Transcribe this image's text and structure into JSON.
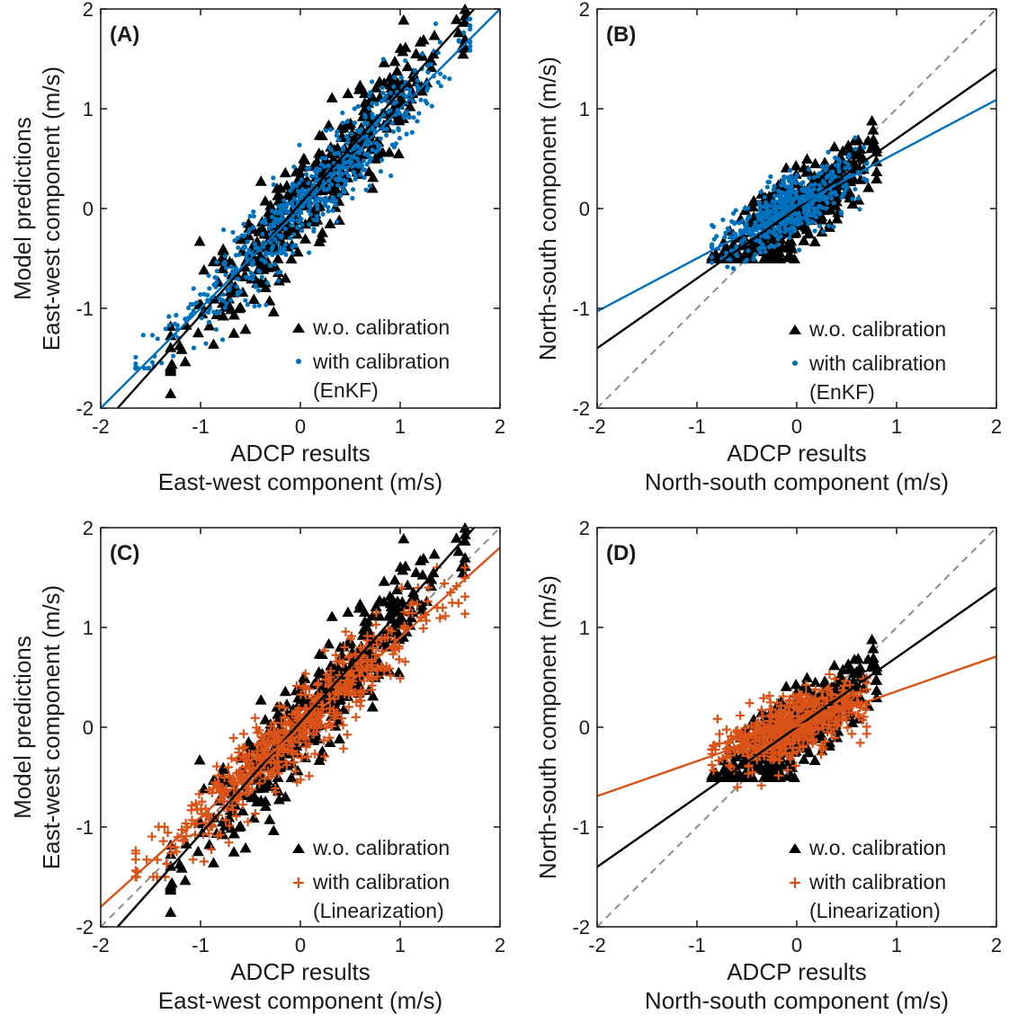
{
  "figure": {
    "y_axis_common_label": "Model predictions",
    "x_axis_common_label": "ADCP results"
  },
  "chart_data": [
    {
      "type": "scatter",
      "panel_label": "(A)",
      "xlabel": "East-west component (m/s)",
      "ylabel": "East-west component (m/s)",
      "xlim": [
        -2,
        2
      ],
      "ylim": [
        -2,
        2
      ],
      "xticks": [
        "-2",
        "-1",
        "0",
        "1",
        "2"
      ],
      "yticks": [
        "-2",
        "-1",
        "0",
        "1",
        "2"
      ],
      "identity_line": true,
      "legend_location": "bottom-right",
      "series": [
        {
          "name": "w.o. calibration",
          "marker": "triangle",
          "color": "#000000",
          "fit": {
            "slope": 1.12,
            "intercept": 0.05
          },
          "spread": 0.26,
          "cluster": {
            "x_range": [
              -1.3,
              1.65
            ],
            "y_clip": [
              -1.85,
              2.0
            ]
          },
          "n": 420,
          "seed": 11
        },
        {
          "name": "with calibration",
          "marker": "dot",
          "color": "#0072BD",
          "fit": {
            "slope": 1.0,
            "intercept": 0.0
          },
          "spread": 0.21,
          "cluster": {
            "x_range": [
              -1.65,
              1.7
            ],
            "y_clip": [
              -1.6,
              1.9
            ]
          },
          "n": 620,
          "seed": 23
        }
      ],
      "legend_note": "(EnKF)"
    },
    {
      "type": "scatter",
      "panel_label": "(B)",
      "xlabel": "North-south component (m/s)",
      "ylabel": "North-south component (m/s)",
      "xlim": [
        -2,
        2
      ],
      "ylim": [
        -2,
        2
      ],
      "xticks": [
        "-2",
        "-1",
        "0",
        "1",
        "2"
      ],
      "yticks": [
        "-2",
        "-1",
        "0",
        "1",
        "2"
      ],
      "identity_line": true,
      "legend_location": "bottom-right",
      "series": [
        {
          "name": "w.o. calibration",
          "marker": "triangle",
          "color": "#000000",
          "fit": {
            "slope": 0.7,
            "intercept": 0.0
          },
          "spread": 0.2,
          "cluster": {
            "x_range": [
              -0.85,
              0.8
            ],
            "y_clip": [
              -0.5,
              0.95
            ]
          },
          "n": 360,
          "seed": 37
        },
        {
          "name": "with calibration",
          "marker": "dot",
          "color": "#0072BD",
          "fit": {
            "slope": 0.53,
            "intercept": 0.03
          },
          "spread": 0.16,
          "cluster": {
            "x_range": [
              -0.85,
              0.7
            ],
            "y_clip": [
              -0.6,
              0.85
            ]
          },
          "n": 520,
          "seed": 41
        }
      ],
      "legend_note": "(EnKF)"
    },
    {
      "type": "scatter",
      "panel_label": "(C)",
      "xlabel": "East-west component (m/s)",
      "ylabel": "East-west component (m/s)",
      "xlim": [
        -2,
        2
      ],
      "ylim": [
        -2,
        2
      ],
      "xticks": [
        "-2",
        "-1",
        "0",
        "1",
        "2"
      ],
      "yticks": [
        "-2",
        "-1",
        "0",
        "1",
        "2"
      ],
      "identity_line": true,
      "legend_location": "bottom-right",
      "series": [
        {
          "name": "w.o. calibration",
          "marker": "triangle",
          "color": "#000000",
          "fit": {
            "slope": 1.12,
            "intercept": 0.05
          },
          "spread": 0.26,
          "cluster": {
            "x_range": [
              -1.3,
              1.65
            ],
            "y_clip": [
              -1.85,
              2.0
            ]
          },
          "n": 420,
          "seed": 11
        },
        {
          "name": "with calibration",
          "marker": "plus",
          "color": "#D95319",
          "fit": {
            "slope": 0.9,
            "intercept": 0.0
          },
          "spread": 0.2,
          "cluster": {
            "x_range": [
              -1.65,
              1.65
            ],
            "y_clip": [
              -1.5,
              1.6
            ]
          },
          "n": 560,
          "seed": 53
        }
      ],
      "legend_note": "(Linearization)"
    },
    {
      "type": "scatter",
      "panel_label": "(D)",
      "xlabel": "North-south component (m/s)",
      "ylabel": "North-south component (m/s)",
      "xlim": [
        -2,
        2
      ],
      "ylim": [
        -2,
        2
      ],
      "xticks": [
        "-2",
        "-1",
        "0",
        "1",
        "2"
      ],
      "yticks": [
        "-2",
        "-1",
        "0",
        "1",
        "2"
      ],
      "identity_line": true,
      "legend_location": "bottom-right",
      "series": [
        {
          "name": "w.o. calibration",
          "marker": "triangle",
          "color": "#000000",
          "fit": {
            "slope": 0.7,
            "intercept": 0.0
          },
          "spread": 0.2,
          "cluster": {
            "x_range": [
              -0.85,
              0.8
            ],
            "y_clip": [
              -0.5,
              0.95
            ]
          },
          "n": 360,
          "seed": 37
        },
        {
          "name": "with calibration",
          "marker": "plus",
          "color": "#D95319",
          "fit": {
            "slope": 0.35,
            "intercept": 0.01
          },
          "spread": 0.15,
          "cluster": {
            "x_range": [
              -0.85,
              0.7
            ],
            "y_clip": [
              -0.6,
              0.7
            ]
          },
          "n": 480,
          "seed": 67
        }
      ],
      "legend_note": "(Linearization)"
    }
  ]
}
